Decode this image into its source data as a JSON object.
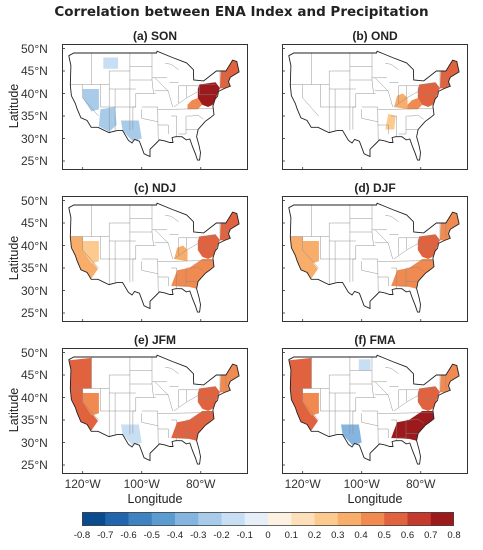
{
  "title": "Correlation between ENA Index and Precipitation",
  "axes": {
    "ylabel": "Latitude",
    "xlabel": "Longitude",
    "lat_ticks": [
      "50°N",
      "45°N",
      "40°N",
      "35°N",
      "30°N",
      "25°N"
    ],
    "lon_ticks": [
      "120°W",
      "100°W",
      "80°W"
    ]
  },
  "panels": [
    {
      "label": "(a) SON",
      "season": "SON",
      "regions": [
        {
          "area": "mid-atlantic-northeast",
          "r": 0.7
        },
        {
          "area": "new-england",
          "r": 0.5
        },
        {
          "area": "appalachian",
          "r": 0.4
        },
        {
          "area": "great-basin",
          "r": -0.3
        },
        {
          "area": "southwest",
          "r": -0.3
        },
        {
          "area": "texas-nm",
          "r": -0.3
        },
        {
          "area": "northern-rockies",
          "r": -0.2
        }
      ]
    },
    {
      "label": "(b) OND",
      "season": "OND",
      "regions": [
        {
          "area": "mid-atlantic-northeast",
          "r": 0.6
        },
        {
          "area": "new-england",
          "r": 0.5
        },
        {
          "area": "appalachian",
          "r": 0.4
        },
        {
          "area": "ohio-valley",
          "r": 0.3
        },
        {
          "area": "lower-mississippi",
          "r": 0.2
        }
      ]
    },
    {
      "label": "(c) NDJ",
      "season": "NDJ",
      "regions": [
        {
          "area": "mid-atlantic-northeast",
          "r": 0.6
        },
        {
          "area": "new-england",
          "r": 0.5
        },
        {
          "area": "southeast",
          "r": 0.4
        },
        {
          "area": "ohio-valley",
          "r": 0.3
        },
        {
          "area": "california",
          "r": 0.3
        },
        {
          "area": "great-basin",
          "r": 0.2
        }
      ]
    },
    {
      "label": "(d) DJF",
      "season": "DJF",
      "regions": [
        {
          "area": "mid-atlantic-northeast",
          "r": 0.5
        },
        {
          "area": "new-england",
          "r": 0.4
        },
        {
          "area": "southeast",
          "r": 0.4
        },
        {
          "area": "california",
          "r": 0.3
        },
        {
          "area": "great-basin",
          "r": 0.3
        }
      ]
    },
    {
      "label": "(e) JFM",
      "season": "JFM",
      "regions": [
        {
          "area": "pacific-northwest",
          "r": 0.5
        },
        {
          "area": "california",
          "r": 0.5
        },
        {
          "area": "great-basin",
          "r": 0.4
        },
        {
          "area": "southeast",
          "r": 0.6
        },
        {
          "area": "mid-atlantic-northeast",
          "r": 0.5
        },
        {
          "area": "new-england",
          "r": 0.4
        },
        {
          "area": "texas-nm",
          "r": -0.2
        }
      ]
    },
    {
      "label": "(f) FMA",
      "season": "FMA",
      "regions": [
        {
          "area": "pacific-northwest",
          "r": 0.5
        },
        {
          "area": "california",
          "r": 0.5
        },
        {
          "area": "great-basin",
          "r": 0.4
        },
        {
          "area": "southeast",
          "r": 0.7
        },
        {
          "area": "mid-atlantic-northeast",
          "r": 0.5
        },
        {
          "area": "new-england",
          "r": 0.4
        },
        {
          "area": "texas-nm",
          "r": -0.4
        },
        {
          "area": "northern-plains",
          "r": -0.2
        }
      ]
    }
  ],
  "colorbar": {
    "ticks": [
      "-0.8",
      "-0.7",
      "-0.6",
      "-0.5",
      "-0.4",
      "-0.3",
      "-0.2",
      "-0.1",
      "0",
      "0.1",
      "0.2",
      "0.3",
      "0.4",
      "0.5",
      "0.6",
      "0.7",
      "0.8"
    ],
    "colors": [
      "#0b4a8f",
      "#2166ac",
      "#3f82c0",
      "#5c9bd0",
      "#85b5de",
      "#a7cbe9",
      "#c8def2",
      "#e6eff8",
      "#fdf1e2",
      "#fde0b9",
      "#fcca8e",
      "#f8ad6a",
      "#f08a50",
      "#e1623e",
      "#c43a2c",
      "#9c1a1c"
    ],
    "range": [
      -0.8,
      0.8
    ]
  }
}
